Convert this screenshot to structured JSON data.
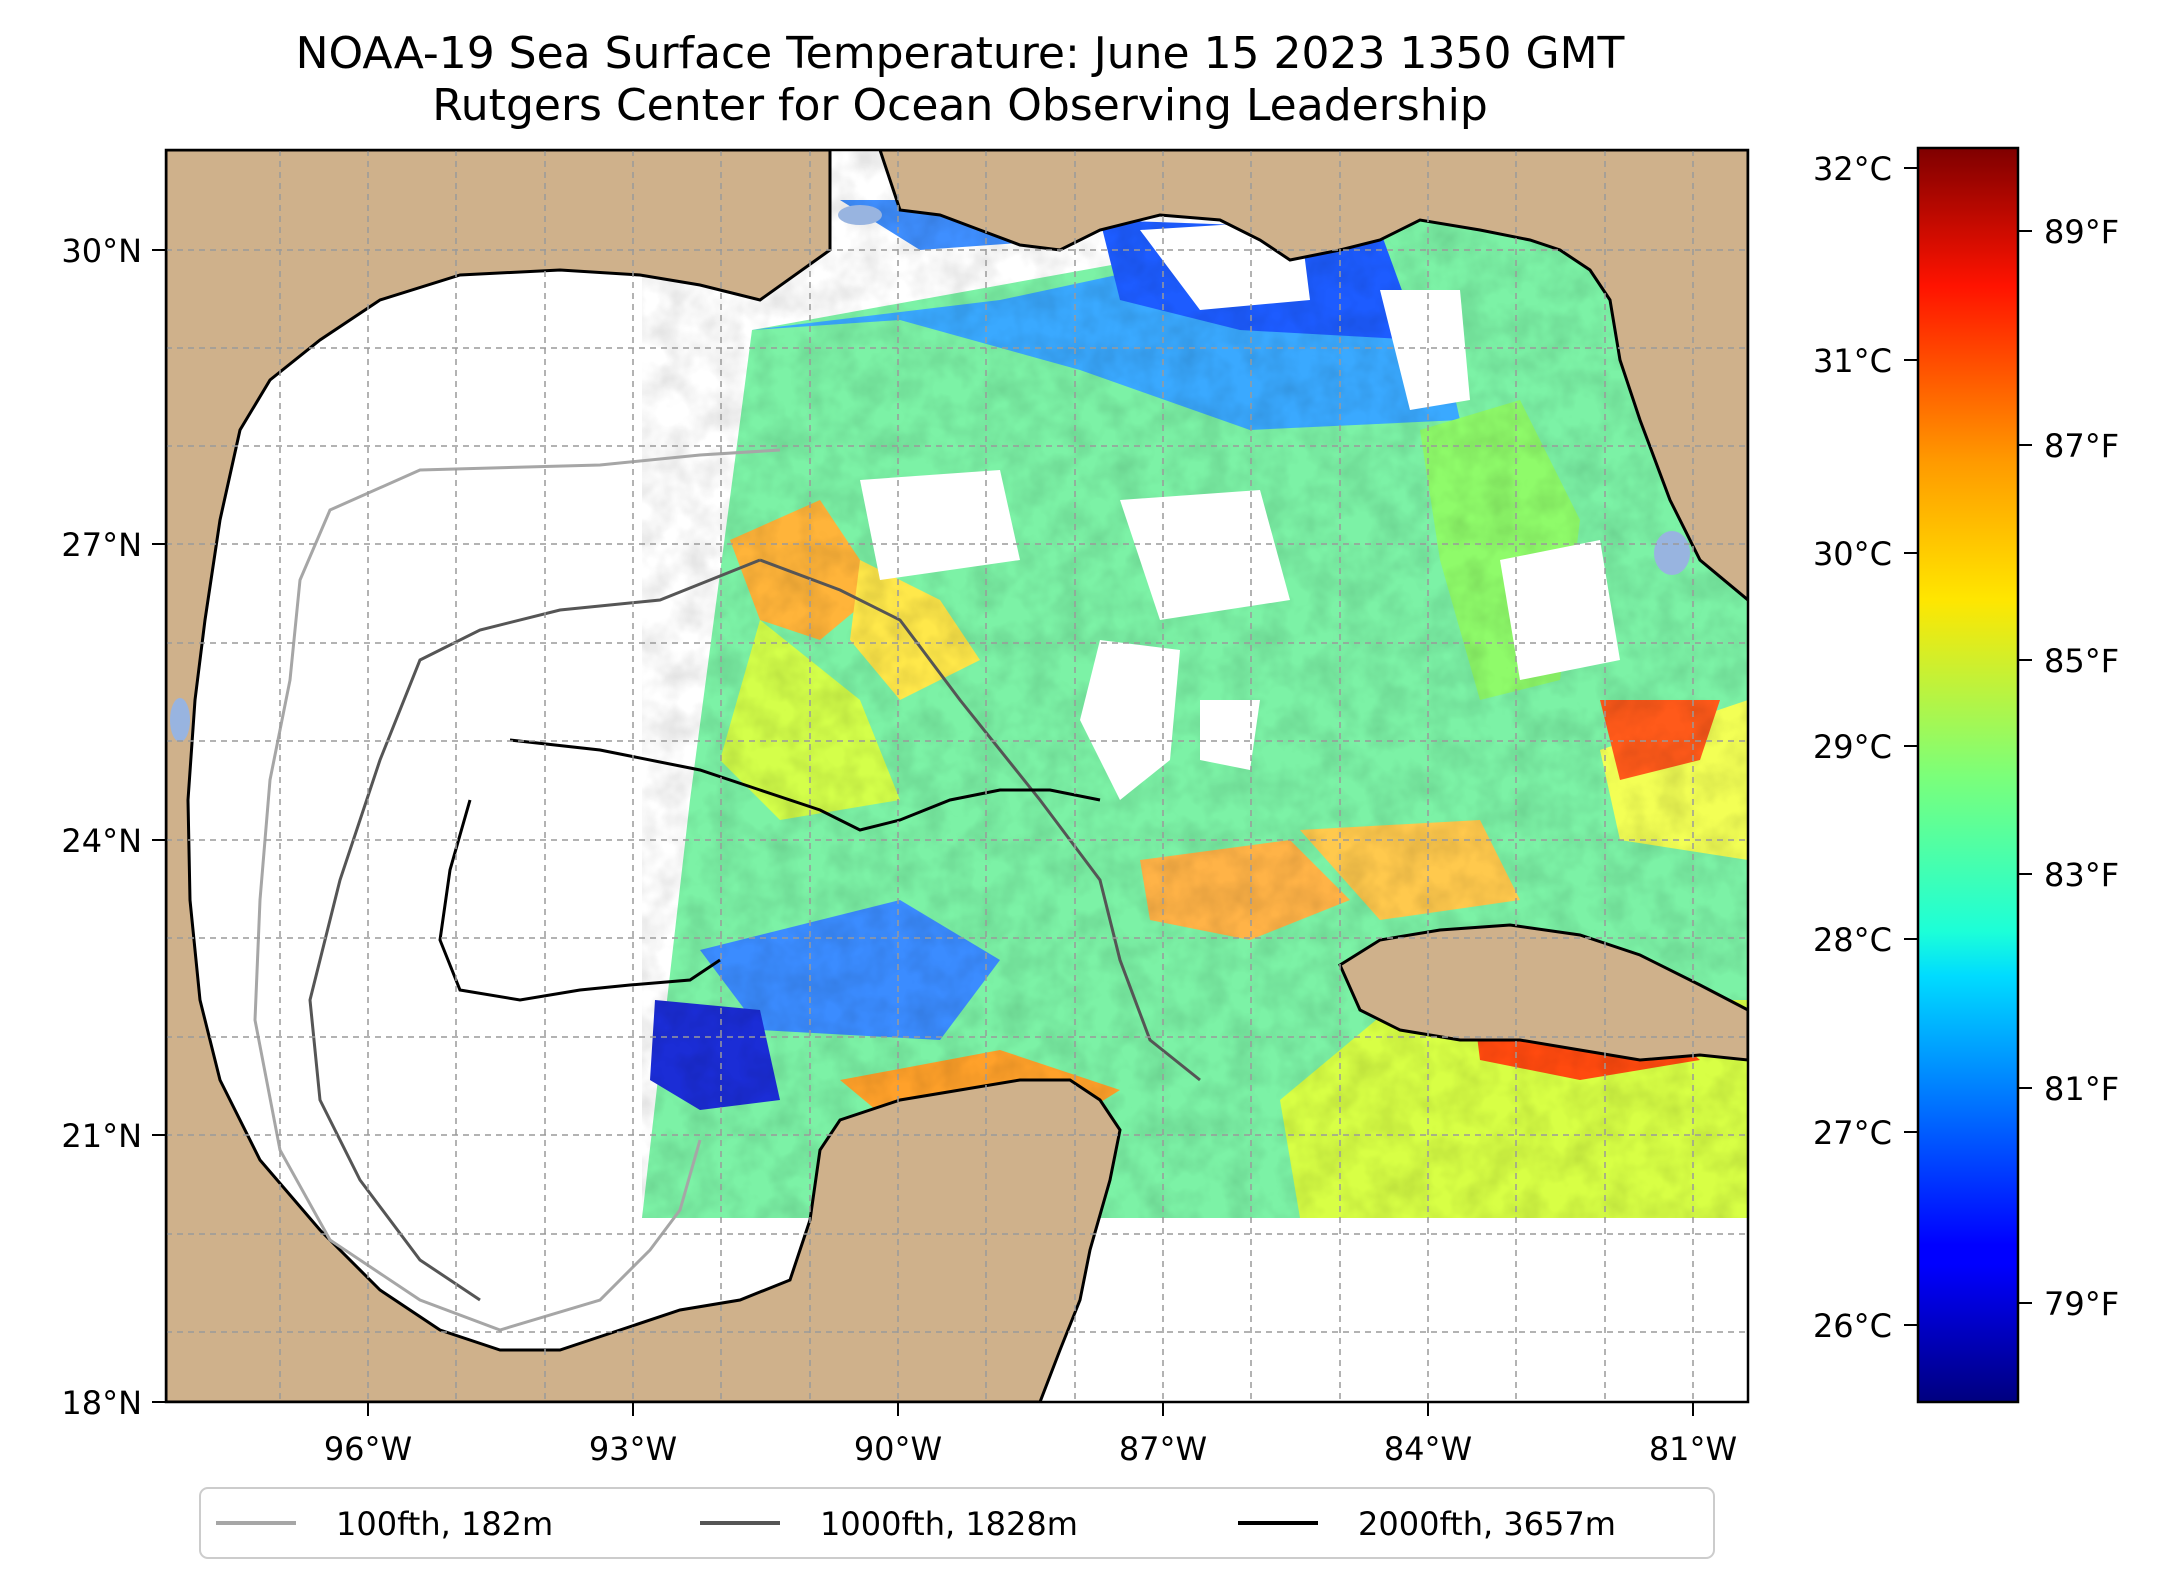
{
  "title": {
    "line1": "NOAA-19 Sea Surface Temperature: June 15 2023 1350 GMT",
    "line2": "Rutgers Center for Ocean Observing Leadership"
  },
  "map": {
    "lat_ticks": [
      "30°N",
      "27°N",
      "24°N",
      "21°N",
      "18°N"
    ],
    "lon_ticks": [
      "96°W",
      "93°W",
      "90°W",
      "87°W",
      "84°W",
      "81°W"
    ],
    "lat_range": [
      18,
      31
    ],
    "lon_range": [
      -98.3,
      -80.5
    ],
    "land_color": "#cfb18b",
    "lake_color": "#98b4e0",
    "grid": true
  },
  "colorbar": {
    "celsius_ticks": [
      "32°C",
      "31°C",
      "30°C",
      "29°C",
      "28°C",
      "27°C",
      "26°C"
    ],
    "fahrenheit_ticks": [
      "89°F",
      "87°F",
      "85°F",
      "83°F",
      "81°F",
      "79°F"
    ],
    "colormap": "jet",
    "range_c": [
      25.6,
      32.1
    ]
  },
  "legend": {
    "items": [
      {
        "label": "100fth, 182m",
        "color": "#a6a6a6"
      },
      {
        "label": "1000fth, 1828m",
        "color": "#555555"
      },
      {
        "label": "2000fth, 3657m",
        "color": "#000000"
      }
    ]
  }
}
